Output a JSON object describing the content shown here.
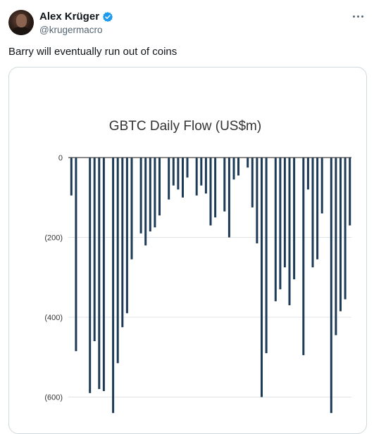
{
  "author": {
    "name": "Alex Krüger",
    "handle": "@krugermacro",
    "verified": true
  },
  "tweet": {
    "text": "Barry will eventually run out of coins"
  },
  "chart_data": {
    "type": "bar",
    "title": "GBTC Daily Flow (US$m)",
    "ylabel": "",
    "xlabel": "",
    "ylim": [
      -640,
      0
    ],
    "y_ticks": [
      "0",
      "(200)",
      "(400)",
      "(600)"
    ],
    "y_tick_values": [
      0,
      -200,
      -400,
      -600
    ],
    "grid": true,
    "bar_color": "#1d3b57",
    "values": [
      -95,
      -485,
      0,
      0,
      -590,
      -460,
      -580,
      -585,
      0,
      -640,
      -515,
      -425,
      -390,
      -255,
      0,
      -190,
      -220,
      -185,
      -175,
      -145,
      0,
      -105,
      -70,
      -80,
      -100,
      -50,
      0,
      -95,
      -70,
      -90,
      -170,
      -150,
      0,
      -135,
      -200,
      -55,
      -45,
      0,
      -25,
      -125,
      -215,
      -600,
      -490,
      0,
      -360,
      -330,
      -275,
      -370,
      -305,
      0,
      -495,
      -80,
      -275,
      -255,
      -140,
      0,
      -640,
      -445,
      -385,
      -355,
      -170
    ]
  },
  "colors": {
    "verified": "#1d9bf0",
    "secondary_text": "#536471",
    "border": "#cfd9de",
    "gridline": "#dfe3e6"
  }
}
